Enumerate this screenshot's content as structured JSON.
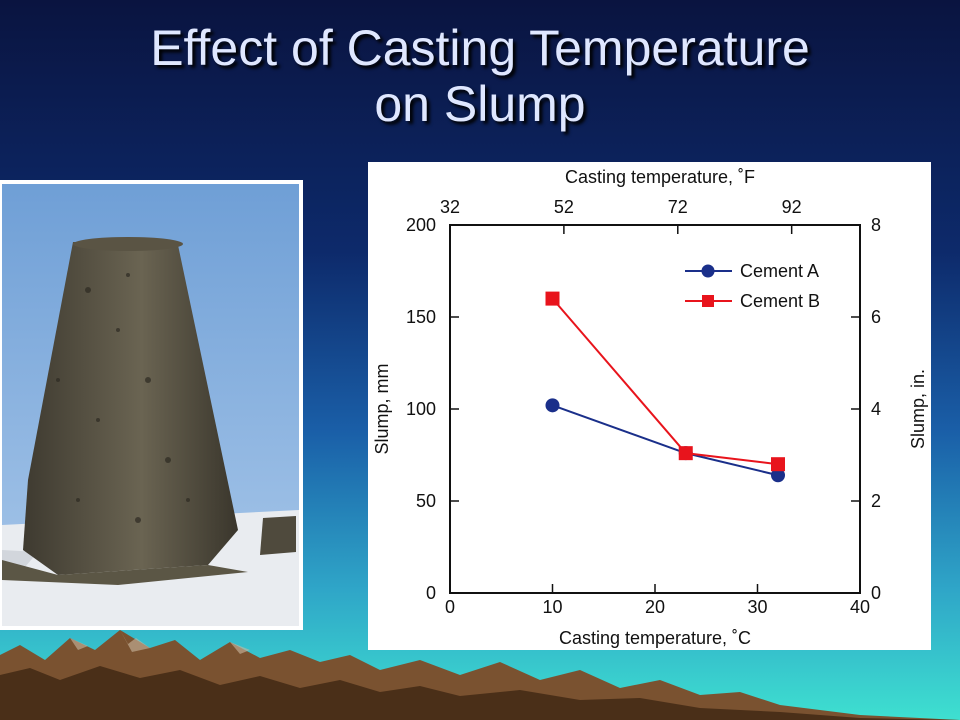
{
  "slide": {
    "title_line1": "Effect of Casting Temperature",
    "title_line2": "on Slump"
  },
  "photo": {
    "subject": "slumped-concrete-cone"
  },
  "colors": {
    "cement_a": "#1a2f8a",
    "cement_b": "#e8141c"
  },
  "chart_data": {
    "type": "line",
    "xlabel": "Casting temperature, ˚C",
    "x2label": "Casting temperature, ˚F",
    "ylabel": "Slump, mm",
    "y2label": "Slump, in.",
    "xlim": [
      0,
      40
    ],
    "ylim": [
      0,
      200
    ],
    "x2lim": [
      32,
      104
    ],
    "y2lim": [
      0,
      8
    ],
    "x_ticks": [
      "0",
      "10",
      "20",
      "30",
      "40"
    ],
    "y_ticks": [
      "0",
      "50",
      "100",
      "150",
      "200"
    ],
    "x2_ticks": [
      "32",
      "52",
      "72",
      "92"
    ],
    "y2_ticks": [
      "0",
      "2",
      "4",
      "6",
      "8"
    ],
    "grid": false,
    "legend_position": "top-right",
    "series": [
      {
        "name": "Cement A",
        "marker": "circle",
        "x": [
          10,
          23,
          32
        ],
        "y": [
          102,
          76,
          64
        ]
      },
      {
        "name": "Cement B",
        "marker": "square",
        "x": [
          10,
          23,
          32
        ],
        "y": [
          160,
          76,
          70
        ]
      }
    ]
  }
}
